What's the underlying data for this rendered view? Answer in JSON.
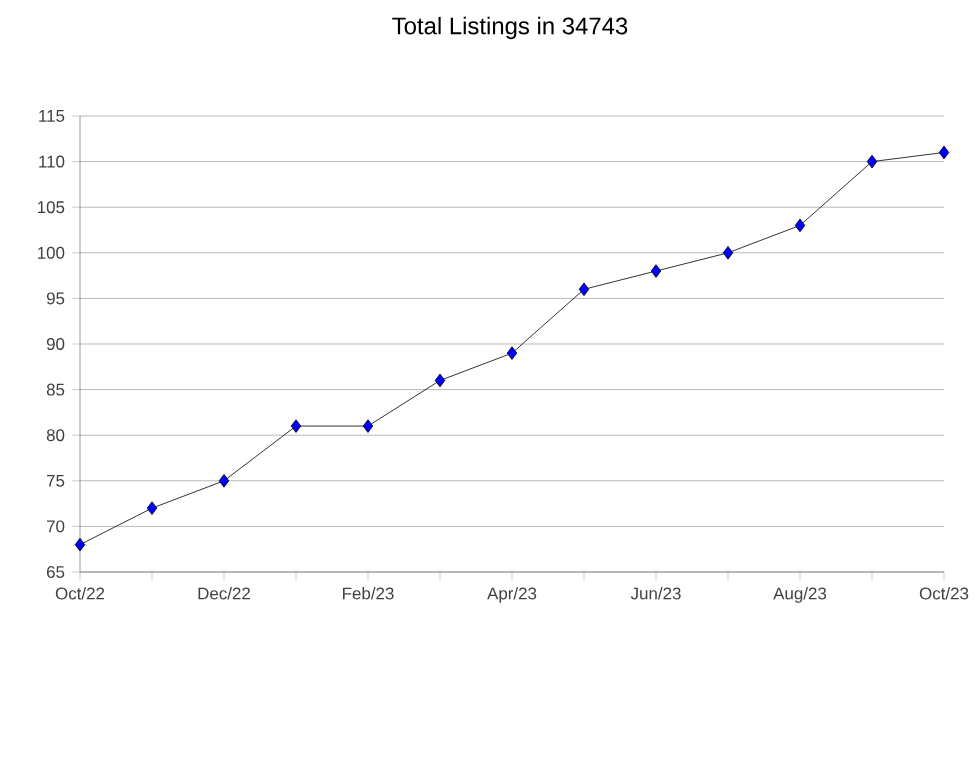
{
  "chart_data": {
    "type": "line",
    "title": "Total Listings in 34743",
    "categories": [
      "Oct/22",
      null,
      "Dec/22",
      null,
      "Feb/23",
      null,
      "Apr/23",
      null,
      "Jun/23",
      null,
      "Aug/23",
      null,
      "Oct/23"
    ],
    "series": [
      {
        "color": "#0000ff",
        "values": [
          68,
          72,
          75,
          81,
          81,
          86,
          89,
          96,
          98,
          100,
          103,
          110,
          111
        ]
      }
    ],
    "ylim": [
      65,
      115
    ],
    "yticks": [
      65,
      70,
      75,
      80,
      85,
      90,
      95,
      100,
      105,
      110,
      115
    ],
    "grid": "y",
    "marker": "diamond",
    "line_style": "solid"
  }
}
